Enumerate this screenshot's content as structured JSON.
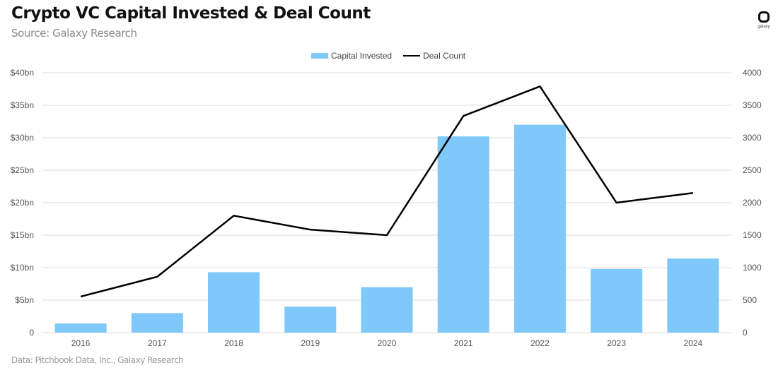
{
  "header": {
    "title": "Crypto VC Capital Invested & Deal Count",
    "subtitle": "Source: Galaxy Research",
    "logo_text": "galaxy"
  },
  "footer": {
    "text": "Data: Pitchbook Data, Inc., Galaxy Research"
  },
  "chart_data": {
    "type": "bar",
    "title": "Crypto VC Capital Invested & Deal Count",
    "subtitle": "Source: Galaxy Research",
    "categories": [
      "2016",
      "2017",
      "2018",
      "2019",
      "2020",
      "2021",
      "2022",
      "2023",
      "2024"
    ],
    "series": [
      {
        "name": "Capital Invested",
        "type": "bar",
        "axis": "left",
        "unit": "$bn",
        "color": "#7ec8fa",
        "values": [
          1.4,
          3.0,
          9.3,
          4.0,
          7.0,
          30.2,
          32.0,
          9.8,
          11.4
        ]
      },
      {
        "name": "Deal Count",
        "type": "line",
        "axis": "right",
        "color": "#000000",
        "values": [
          555,
          860,
          1800,
          1585,
          1500,
          3335,
          3790,
          2000,
          2150
        ]
      }
    ],
    "left_axis": {
      "range": [
        0,
        40
      ],
      "ticks": [
        0,
        5,
        10,
        15,
        20,
        25,
        30,
        35,
        40
      ],
      "tick_labels": [
        "0",
        "$5bn",
        "$10bn",
        "$15bn",
        "$20bn",
        "$25bn",
        "$30bn",
        "$35bn",
        "$40bn"
      ]
    },
    "right_axis": {
      "range": [
        0,
        4000
      ],
      "ticks": [
        0,
        500,
        1000,
        1500,
        2000,
        2500,
        3000,
        3500,
        4000
      ],
      "tick_labels": [
        "0",
        "500",
        "1000",
        "1500",
        "2000",
        "2500",
        "3000",
        "3500",
        "4000"
      ]
    },
    "legend": {
      "position": "top-center",
      "entries": [
        "Capital Invested",
        "Deal Count"
      ]
    },
    "grid": true
  }
}
